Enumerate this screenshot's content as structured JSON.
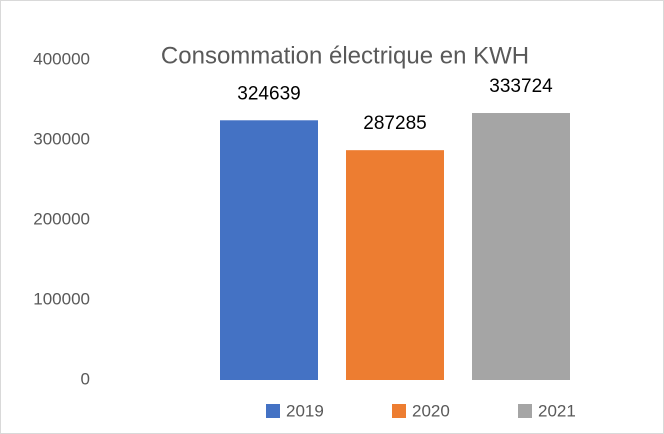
{
  "chart_data": {
    "type": "bar",
    "title": "Consommation électrique en KWH",
    "categories": [
      null
    ],
    "series": [
      {
        "name": "2019",
        "color": "#4472c4",
        "values": [
          324639
        ]
      },
      {
        "name": "2020",
        "color": "#ed7d31",
        "values": [
          287285
        ]
      },
      {
        "name": "2021",
        "color": "#a5a5a5",
        "values": [
          333724
        ]
      }
    ],
    "ylim": [
      0,
      400000
    ],
    "yticks": [
      0,
      100000,
      200000,
      300000,
      400000
    ],
    "grid": false,
    "legend": "bottom"
  }
}
